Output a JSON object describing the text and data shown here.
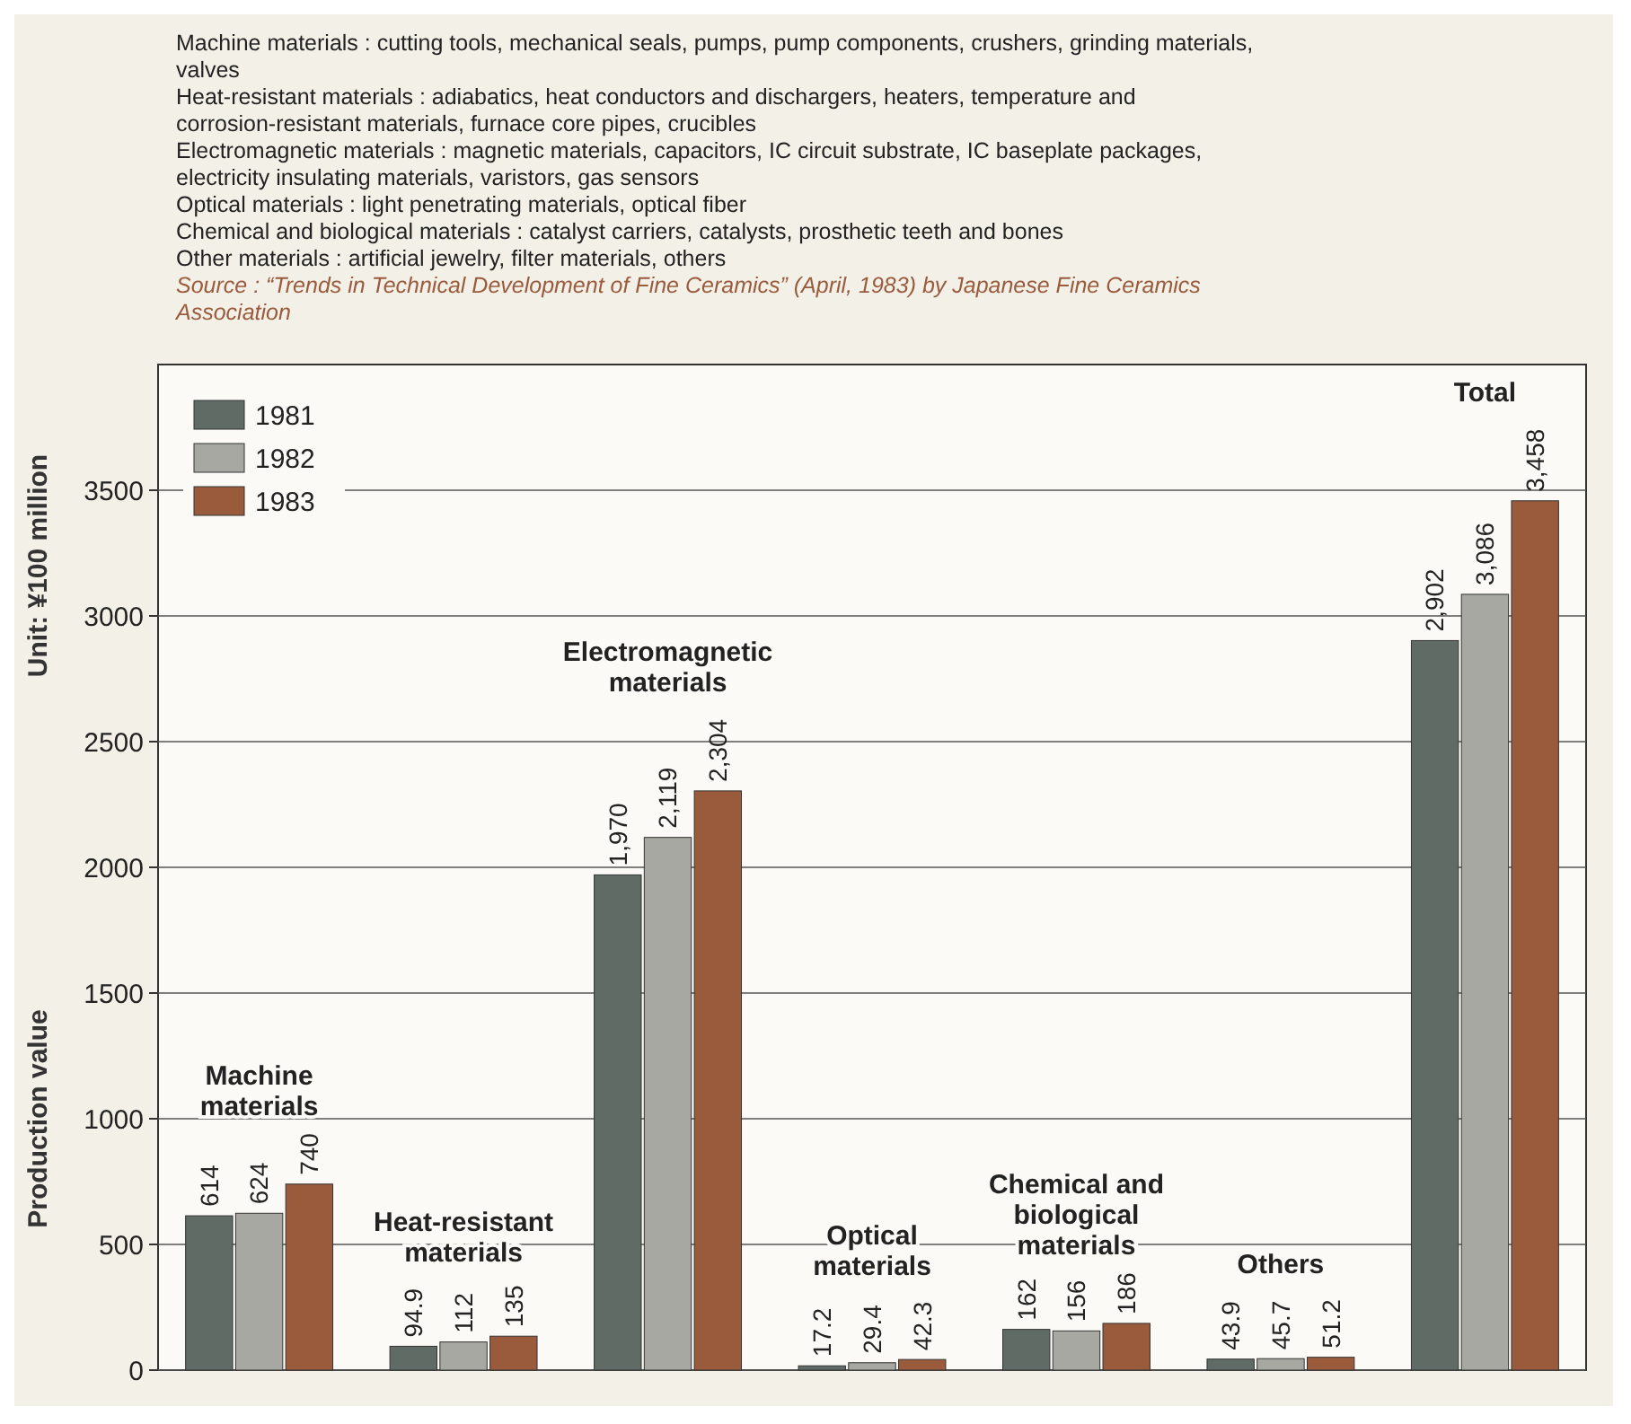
{
  "chart_data": {
    "type": "bar",
    "ylabel": "Production value",
    "categories": [
      "Machine materials",
      "Heat-resistant materials",
      "Electromagnetic materials",
      "Optical materials",
      "Chemical and biological materials",
      "Others",
      "Total"
    ],
    "series": [
      {
        "name": "1981",
        "color": "#5f6b64",
        "values": [
          614,
          94.9,
          1970,
          17.2,
          162,
          43.9,
          2902
        ],
        "value_labels": [
          "614",
          "94.9",
          "1,970",
          "17.2",
          "162",
          "43.9",
          "2,902"
        ]
      },
      {
        "name": "1982",
        "color": "#a8a8a2",
        "values": [
          624,
          112,
          2119,
          29.4,
          156,
          45.7,
          3086
        ],
        "value_labels": [
          "624",
          "112",
          "2,119",
          "29.4",
          "156",
          "45.7",
          "3,086"
        ]
      },
      {
        "name": "1983",
        "color": "#9a5b3d",
        "values": [
          740,
          135,
          2304,
          42.3,
          186,
          51.2,
          3458
        ],
        "value_labels": [
          "740",
          "135",
          "2,304",
          "42.3",
          "186",
          "51.2",
          "3,458"
        ]
      }
    ],
    "ylim": [
      0,
      4000
    ],
    "yticks": [
      0,
      500,
      1000,
      1500,
      2000,
      2500,
      3000,
      3500
    ],
    "grid": "y",
    "legend": "top left",
    "annotations": [
      "Unit: ¥100 million",
      "Machine materials : cutting tools, mechanical seals, pumps, pump components, crushers, grinding materials, valves",
      "Heat-resistant materials : adiabatics, heat conductors and dischargers, heaters, temperature and corrosion-resistant materials, furnace core pipes, crucibles",
      "Electromagnetic materials : magnetic materials, capacitors, IC circuit substrate, IC baseplate packages, electricity insulating materials, varistors, gas sensors",
      "Optical materials : light penetrating materials, optical fiber",
      "Chemical and biological materials : catalyst carriers, catalysts, prosthetic teeth and bones",
      "Other materials : artificial jewelry, filter materials, others",
      "Source : “Trends in Technical Development of Fine Ceramics” (April, 1983) by Japanese Fine Ceramics Association"
    ]
  }
}
